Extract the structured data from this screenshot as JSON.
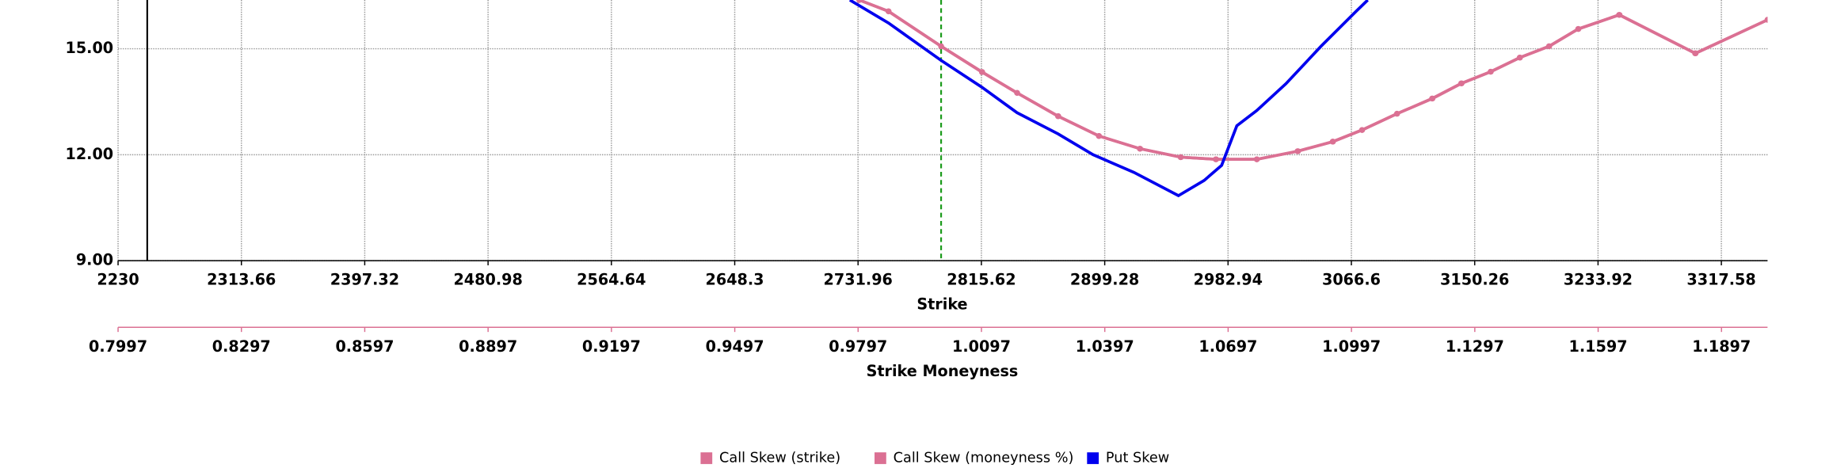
{
  "chart_data": {
    "type": "line",
    "xlabel": "Strike",
    "x2label": "Strike Moneyness",
    "xlim": [
      2230,
      3348.9
    ],
    "xticks": [
      2230,
      2313.66,
      2397.32,
      2480.98,
      2564.64,
      2648.3,
      2731.96,
      2815.62,
      2899.28,
      2982.94,
      3066.6,
      3150.26,
      3233.92,
      3317.58
    ],
    "x2lim": [
      0.7997,
      1.2009
    ],
    "x2ticks": [
      0.7997,
      0.8297,
      0.8597,
      0.8897,
      0.9197,
      0.9497,
      0.9797,
      1.0097,
      1.0397,
      1.0697,
      1.0997,
      1.1297,
      1.1597,
      1.1897
    ],
    "ylim": [
      9,
      16.38
    ],
    "yticks": [
      {
        "value": 9,
        "label": "9.00"
      },
      {
        "value": 12,
        "label": "12.00"
      },
      {
        "value": 15,
        "label": "15.00"
      }
    ],
    "grid": true,
    "legend": "bottom",
    "vlines": [
      {
        "x": 2788.3,
        "color": "#1a9a1a",
        "dash": true
      },
      {
        "x": 2249.8,
        "color": "#000000",
        "dash": false
      }
    ],
    "series": [
      {
        "name": "Call Skew (strike)",
        "color": "#db7093",
        "markers": true,
        "x": [
          2732.8,
          2752.6,
          2788.3,
          2816.0,
          2839.8,
          2867.6,
          2895.3,
          2923.1,
          2950.8,
          2974.6,
          3002.4,
          3030.1,
          3053.9,
          3073.8,
          3097.5,
          3121.3,
          3141.1,
          3161.0,
          3180.8,
          3200.6,
          3220.4,
          3248.2,
          3299.8,
          3348.9
        ],
        "values": [
          16.38,
          16.06,
          15.07,
          14.34,
          13.75,
          13.09,
          12.53,
          12.17,
          11.93,
          11.87,
          11.87,
          12.1,
          12.37,
          12.7,
          13.16,
          13.59,
          14.02,
          14.35,
          14.75,
          15.07,
          15.56,
          15.96,
          14.87,
          15.82
        ]
      },
      {
        "name": "Call Skew (moneyness %)",
        "color": "#db7093",
        "markers": true,
        "axis": "x2",
        "x": [
          0.98,
          0.9871,
          0.9999,
          1.0099,
          1.0184,
          1.0284,
          1.0383,
          1.0483,
          1.0582,
          1.0668,
          1.0767,
          1.0867,
          1.0952,
          1.1023,
          1.1108,
          1.1194,
          1.1265,
          1.1336,
          1.1407,
          1.1478,
          1.1549,
          1.1649,
          1.1834,
          1.2009
        ],
        "values": [
          16.38,
          16.06,
          15.07,
          14.34,
          13.75,
          13.09,
          12.53,
          12.17,
          11.93,
          11.87,
          11.87,
          12.1,
          12.37,
          12.7,
          13.16,
          13.59,
          14.02,
          14.35,
          14.75,
          15.07,
          15.56,
          15.96,
          14.87,
          15.82
        ]
      },
      {
        "name": "Put Skew",
        "color": "#0000ee",
        "markers": false,
        "x": [
          2726.4,
          2752.6,
          2788.3,
          2816.0,
          2839.8,
          2867.6,
          2891.4,
          2919.1,
          2949.3,
          2966.7,
          2978.6,
          2988.9,
          3002.4,
          3022.2,
          3046.0,
          3069.8,
          3077.7
        ],
        "values": [
          16.38,
          15.73,
          14.67,
          13.91,
          13.19,
          12.59,
          12.0,
          11.5,
          10.84,
          11.27,
          11.7,
          12.82,
          13.25,
          14.01,
          15.07,
          16.06,
          16.38
        ]
      }
    ]
  }
}
